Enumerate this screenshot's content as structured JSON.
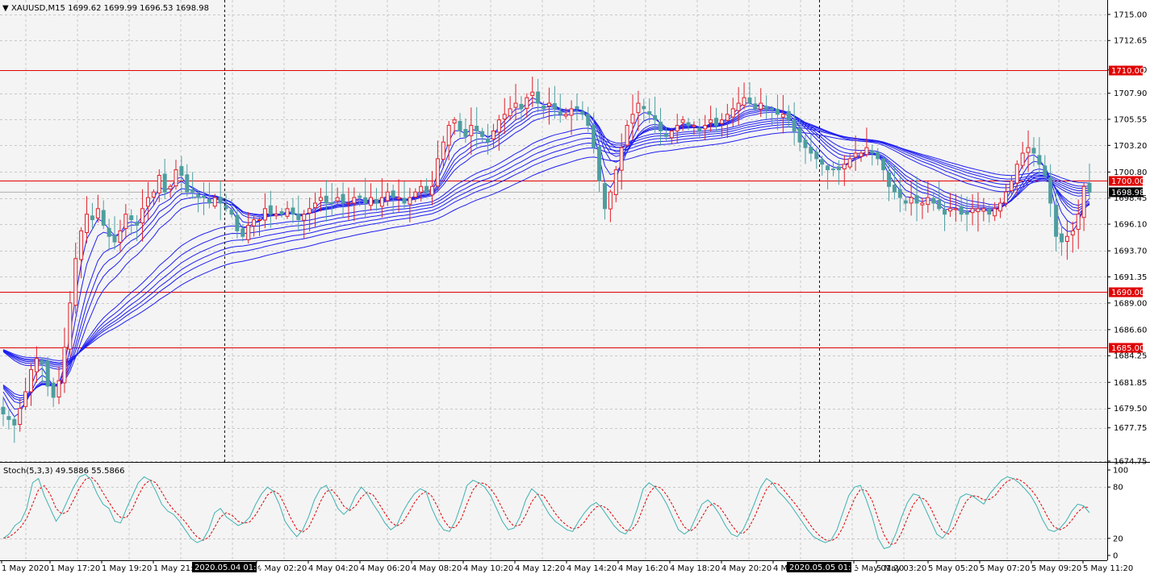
{
  "symbol_header": {
    "arrow": "▼",
    "text": "XAUUSD,M15  1699.62 1699.99 1696.53 1698.98"
  },
  "stoch_header": {
    "text": "Stoch(5,3,3) 49.5886 55.5866"
  },
  "colors": {
    "background": "#f4f4f4",
    "grid": "#c8c8c8",
    "bull_candle": "#e0202a",
    "bear_candle": "#4e9ea0",
    "ma_lines": "#1f1ff0",
    "level_lines": "#e00000",
    "stoch_main": "#40b0b0",
    "stoch_signal": "#e00000",
    "price_tag": "#000000"
  },
  "chart_data": [
    {
      "type": "candlestick",
      "title": "XAUUSD,M15",
      "ylim": [
        1674.75,
        1716.3
      ],
      "price_axis_ticks": [
        "1715.00",
        "1712.65",
        "1710.00",
        "1707.90",
        "1705.55",
        "1703.20",
        "1700.80",
        "1698.45",
        "1696.10",
        "1693.70",
        "1691.35",
        "1689.00",
        "1686.60",
        "1684.25",
        "1681.85",
        "1679.50",
        "1677.75",
        "1674.75"
      ],
      "horizontal_levels": [
        {
          "label": "1710.00",
          "value": 1710.0
        },
        {
          "label": "1700.00",
          "value": 1700.0
        },
        {
          "label": "1690.00",
          "value": 1690.0
        },
        {
          "label": "1685.00",
          "value": 1685.0
        }
      ],
      "current_price": {
        "label": "1698.98",
        "value": 1698.98
      },
      "time_labels": [
        "1 May 2020",
        "1 May 17:20",
        "1 May 19:20",
        "1 May 21:2",
        "4 May 02:20",
        "4 May 04:20",
        "4 May 06:20",
        "4 May 08:20",
        "4 May 10:20",
        "4 May 12:20",
        "4 May 14:20",
        "4 May 16:20",
        "4 May 18:20",
        "4 May 20:20",
        "4 M",
        "5 May 01:20",
        "5 May 03:20",
        "5 May 05:20",
        "5 May 07:20",
        "5 May 09:20",
        "5 May 11:20"
      ],
      "crosshair_labels": [
        "2020.05.04 01:05",
        "2020.05.05 01:05"
      ],
      "close_path": [
        1679.0,
        1678.5,
        1678.0,
        1679.5,
        1681.0,
        1683.0,
        1684.0,
        1683.5,
        1681.5,
        1680.5,
        1682.0,
        1685.0,
        1689.0,
        1693.0,
        1695.5,
        1697.0,
        1696.5,
        1697.5,
        1696.0,
        1695.0,
        1694.5,
        1695.5,
        1697.0,
        1696.5,
        1696.0,
        1697.5,
        1698.5,
        1699.0,
        1700.5,
        1699.0,
        1699.5,
        1701.0,
        1700.5,
        1699.0,
        1699.0,
        1698.5,
        1698.5,
        1698.0,
        1698.5,
        1698.0,
        1697.5,
        1697.0,
        1695.5,
        1695.0,
        1696.0,
        1696.5,
        1696.5,
        1697.5,
        1697.0,
        1697.0,
        1697.0,
        1697.5,
        1697.0,
        1696.5,
        1697.0,
        1697.5,
        1698.0,
        1698.5,
        1698.0,
        1698.0,
        1698.5,
        1698.0,
        1698.0,
        1698.5,
        1698.5,
        1698.0,
        1698.5,
        1698.0,
        1698.5,
        1699.0,
        1698.5,
        1698.5,
        1698.0,
        1698.5,
        1699.0,
        1699.5,
        1699.0,
        1699.5,
        1702.0,
        1703.5,
        1705.0,
        1705.5,
        1704.5,
        1704.0,
        1705.0,
        1704.5,
        1704.0,
        1703.5,
        1704.5,
        1705.5,
        1706.0,
        1706.5,
        1707.0,
        1706.5,
        1707.5,
        1708.0,
        1707.0,
        1706.5,
        1707.0,
        1706.5,
        1706.0,
        1706.0,
        1706.5,
        1706.5,
        1706.0,
        1705.0,
        1703.0,
        1700.0,
        1697.5,
        1699.0,
        1701.0,
        1703.0,
        1705.0,
        1706.0,
        1707.0,
        1706.5,
        1706.0,
        1705.5,
        1704.5,
        1704.0,
        1704.5,
        1705.0,
        1705.5,
        1705.0,
        1705.0,
        1704.5,
        1705.0,
        1705.5,
        1705.0,
        1705.5,
        1706.0,
        1706.5,
        1707.0,
        1707.5,
        1707.0,
        1706.5,
        1707.0,
        1706.5,
        1706.5,
        1706.0,
        1706.0,
        1705.5,
        1704.5,
        1703.5,
        1703.0,
        1702.5,
        1702.0,
        1701.5,
        1701.0,
        1701.0,
        1701.0,
        1701.5,
        1702.0,
        1702.5,
        1702.5,
        1703.0,
        1702.5,
        1702.0,
        1701.0,
        1699.5,
        1699.0,
        1698.5,
        1698.0,
        1698.5,
        1698.0,
        1698.0,
        1698.5,
        1698.0,
        1697.5,
        1697.0,
        1697.5,
        1697.5,
        1697.0,
        1697.0,
        1697.5,
        1697.5,
        1697.5,
        1697.0,
        1697.5,
        1698.0,
        1699.0,
        1700.0,
        1701.5,
        1702.5,
        1703.0,
        1702.5,
        1701.5,
        1700.5,
        1698.0,
        1695.0,
        1694.5,
        1695.0,
        1695.5,
        1697.0,
        1699.5,
        1698.98
      ],
      "ma_periods": [
        3,
        5,
        8,
        10,
        12,
        15,
        30,
        35,
        40,
        45,
        50,
        60
      ]
    },
    {
      "type": "line",
      "title": "Stoch(5,3,3)",
      "ylim": [
        0,
        100
      ],
      "axis_ticks": [
        "100",
        "80",
        "20",
        "0"
      ],
      "series": [
        {
          "name": "main",
          "last": 49.5886
        },
        {
          "name": "signal",
          "last": 55.5866
        }
      ],
      "main_values": [
        20,
        25,
        35,
        40,
        55,
        85,
        90,
        70,
        55,
        40,
        50,
        65,
        80,
        92,
        95,
        88,
        72,
        60,
        55,
        40,
        38,
        55,
        70,
        85,
        92,
        88,
        75,
        60,
        52,
        48,
        40,
        30,
        20,
        15,
        18,
        30,
        50,
        55,
        45,
        40,
        35,
        38,
        45,
        60,
        72,
        80,
        75,
        60,
        40,
        30,
        22,
        30,
        45,
        65,
        78,
        82,
        70,
        55,
        48,
        55,
        70,
        80,
        72,
        60,
        50,
        38,
        30,
        35,
        50,
        62,
        72,
        78,
        75,
        55,
        40,
        30,
        28,
        40,
        60,
        82,
        88,
        85,
        80,
        70,
        55,
        40,
        30,
        32,
        45,
        65,
        78,
        72,
        60,
        48,
        40,
        35,
        30,
        28,
        40,
        50,
        58,
        62,
        55,
        45,
        35,
        28,
        25,
        35,
        55,
        78,
        85,
        80,
        72,
        60,
        45,
        30,
        25,
        30,
        45,
        60,
        65,
        58,
        48,
        35,
        25,
        22,
        30,
        45,
        62,
        80,
        90,
        85,
        75,
        68,
        60,
        50,
        40,
        30,
        22,
        18,
        15,
        18,
        30,
        50,
        70,
        80,
        82,
        65,
        45,
        20,
        8,
        10,
        25,
        45,
        62,
        72,
        70,
        55,
        40,
        25,
        20,
        30,
        50,
        68,
        72,
        70,
        65,
        60,
        72,
        80,
        88,
        92,
        90,
        85,
        78,
        70,
        58,
        42,
        30,
        28,
        32,
        40,
        52,
        60,
        58,
        50
      ]
    }
  ]
}
